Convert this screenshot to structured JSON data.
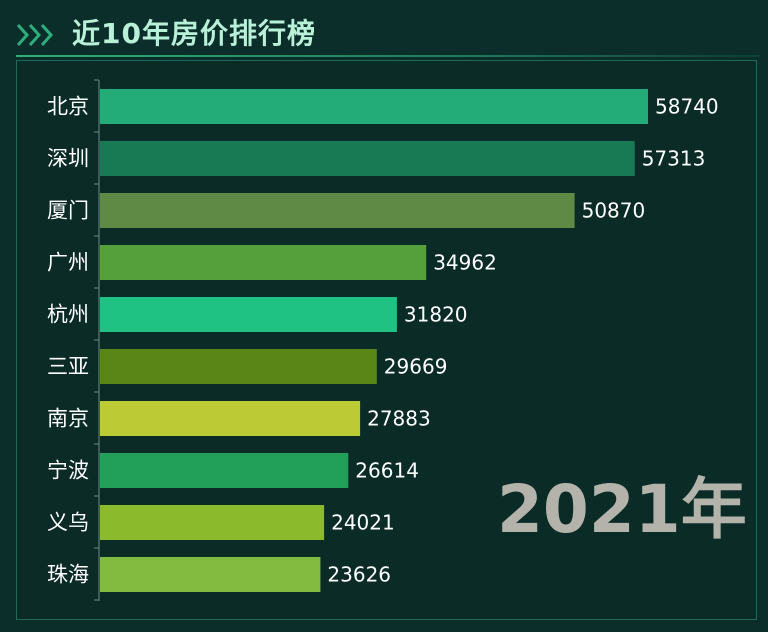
{
  "header": {
    "title": "近10年房价排行榜",
    "chevron_icon": "chevron-triple-right-icon",
    "accent_color": "#2fae7c"
  },
  "chart_data": {
    "type": "bar",
    "orientation": "horizontal",
    "title": "近10年房价排行榜",
    "categories": [
      "北京",
      "深圳",
      "厦门",
      "广州",
      "杭州",
      "三亚",
      "南京",
      "宁波",
      "义乌",
      "珠海"
    ],
    "values": [
      58740,
      57313,
      50870,
      34962,
      31820,
      29669,
      27883,
      26614,
      24021,
      23626
    ],
    "colors": [
      "#23ab78",
      "#187a55",
      "#5e8a45",
      "#55a03a",
      "#20c283",
      "#5a8618",
      "#bccb35",
      "#22a05a",
      "#8bba2c",
      "#83bb40"
    ],
    "xlim": [
      0,
      60000
    ],
    "grid": false,
    "legend": "none",
    "annotation": "2021年"
  }
}
